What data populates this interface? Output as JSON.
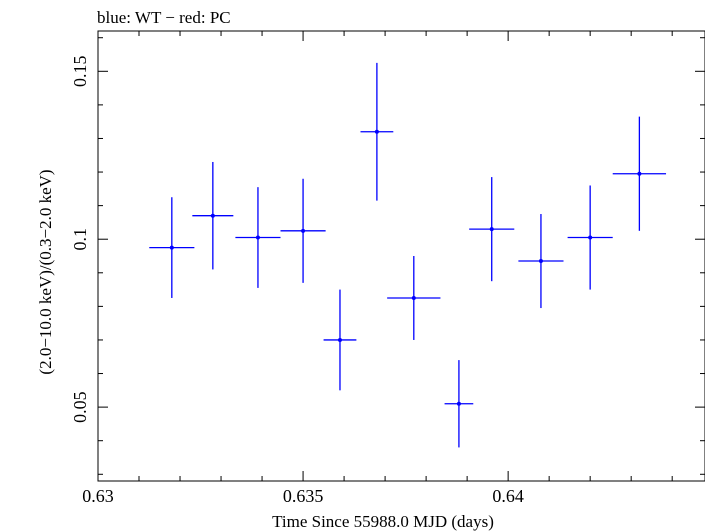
{
  "chart_data": {
    "type": "scatter",
    "title": "blue: WT − red: PC",
    "xlabel": "Time Since 55988.0 MJD (days)",
    "ylabel": "(2.0−10.0 keV)/(0.3−2.0 keV)",
    "xlim": [
      0.63,
      0.6448
    ],
    "ylim": [
      0.028,
      0.162
    ],
    "xticks": [
      0.63,
      0.635,
      0.64
    ],
    "xtick_labels": [
      "0.63",
      "0.635",
      "0.64"
    ],
    "yticks": [
      0.05,
      0.1,
      0.15
    ],
    "ytick_labels": [
      "0.05",
      "0.1",
      "0.15"
    ],
    "grid": false,
    "series": [
      {
        "color": "#0000ff",
        "points": [
          {
            "x": 0.6318,
            "xerr": 0.00055,
            "y": 0.0975,
            "yerr": 0.015
          },
          {
            "x": 0.6328,
            "xerr": 0.0005,
            "y": 0.107,
            "yerr": 0.016
          },
          {
            "x": 0.6339,
            "xerr": 0.00055,
            "y": 0.1005,
            "yerr": 0.015
          },
          {
            "x": 0.635,
            "xerr": 0.00055,
            "y": 0.1025,
            "yerr": 0.0155
          },
          {
            "x": 0.6359,
            "xerr": 0.0004,
            "y": 0.07,
            "yerr": 0.015
          },
          {
            "x": 0.6368,
            "xerr": 0.0004,
            "y": 0.132,
            "yerr": 0.0205
          },
          {
            "x": 0.6377,
            "xerr": 0.00065,
            "y": 0.0825,
            "yerr": 0.0125
          },
          {
            "x": 0.6388,
            "xerr": 0.00035,
            "y": 0.051,
            "yerr": 0.013
          },
          {
            "x": 0.6396,
            "xerr": 0.00055,
            "y": 0.103,
            "yerr": 0.0155
          },
          {
            "x": 0.6408,
            "xerr": 0.00055,
            "y": 0.0935,
            "yerr": 0.014
          },
          {
            "x": 0.642,
            "xerr": 0.00055,
            "y": 0.1005,
            "yerr": 0.0155
          },
          {
            "x": 0.6432,
            "xerr": 0.00065,
            "y": 0.1195,
            "yerr": 0.017
          }
        ]
      }
    ]
  }
}
